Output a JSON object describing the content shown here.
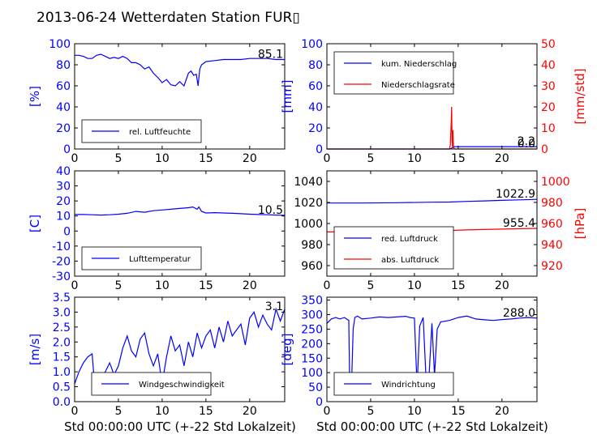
{
  "title": "2013-06-24 Wetterdaten Station FUR▯",
  "xlabel": "Std 00:00:00 UTC (+-22 Std Lokalzeit)",
  "colors": {
    "left_axis": "#0000ff",
    "right_axis": "#ff0000",
    "frame": "#000000"
  },
  "chart_data": [
    {
      "id": "humidity",
      "type": "line",
      "xlim": [
        0,
        24
      ],
      "xticks": [
        0,
        5,
        10,
        15,
        20
      ],
      "ylim": [
        0,
        100
      ],
      "yticks": [
        0,
        20,
        40,
        60,
        80,
        100
      ],
      "ylabel": "[%]",
      "annotation": "85.1",
      "legend": {
        "placement": "lower-left",
        "entries": [
          "rel. Luftfeuchte"
        ]
      },
      "series": [
        {
          "name": "rel. Luftfeuchte",
          "color": "#0000ff",
          "x": [
            0,
            0.5,
            1,
            1.5,
            2,
            2.5,
            3,
            3.5,
            4,
            4.5,
            5,
            5.5,
            6,
            6.5,
            7,
            7.5,
            8,
            8.5,
            9,
            9.5,
            10,
            10.5,
            11,
            11.5,
            12,
            12.5,
            13,
            13.3,
            13.6,
            13.9,
            14.1,
            14.3,
            14.5,
            15,
            16,
            17,
            18,
            19,
            20,
            21,
            22,
            23,
            24
          ],
          "y": [
            89,
            89,
            88,
            86,
            86,
            89,
            90,
            88,
            86,
            87,
            86,
            88,
            86,
            82,
            82,
            80,
            76,
            78,
            72,
            68,
            63,
            66,
            61,
            60,
            64,
            60,
            72,
            74,
            70,
            71,
            60,
            76,
            80,
            83,
            84,
            85,
            85,
            85,
            86,
            86,
            86,
            85,
            85
          ]
        }
      ]
    },
    {
      "id": "precipitation",
      "type": "line",
      "xlim": [
        0,
        24
      ],
      "xticks": [
        0,
        5,
        10,
        15,
        20
      ],
      "ylim": [
        0,
        100
      ],
      "yticks": [
        0,
        20,
        40,
        60,
        80,
        100
      ],
      "ylabel": "[mm]",
      "ylim_right": [
        0,
        50
      ],
      "yticks_right": [
        0,
        10,
        20,
        30,
        40,
        50
      ],
      "ylabel_right": "[mm/std]",
      "annotations": [
        "2.2",
        "0.0"
      ],
      "legend": {
        "placement": "upper-left",
        "entries": [
          "kum. Niederschlag",
          "Niederschlagsrate"
        ]
      },
      "series": [
        {
          "name": "kum. Niederschlag",
          "color": "#0000ff",
          "axis": "left",
          "x": [
            0,
            14.0,
            14.2,
            14.4,
            14.6,
            15,
            24
          ],
          "y": [
            0,
            0,
            0.5,
            1.6,
            2.2,
            2.2,
            2.2
          ]
        },
        {
          "name": "Niederschlagsrate",
          "color": "#ff0000",
          "axis": "right",
          "x": [
            0,
            14.0,
            14.1,
            14.2,
            14.25,
            14.3,
            14.35,
            14.4,
            14.45,
            14.5,
            14.6,
            15,
            24
          ],
          "y": [
            0,
            0,
            2,
            12,
            20,
            4,
            1,
            9,
            2,
            0.5,
            0,
            0,
            0
          ]
        }
      ]
    },
    {
      "id": "temperature",
      "type": "line",
      "xlim": [
        0,
        24
      ],
      "xticks": [
        0,
        5,
        10,
        15,
        20
      ],
      "ylim": [
        -30,
        40
      ],
      "yticks": [
        -30,
        -20,
        -10,
        0,
        10,
        20,
        30,
        40
      ],
      "ylabel": "[C]",
      "annotation": "10.5",
      "legend": {
        "placement": "lower-left",
        "entries": [
          "Lufttemperatur"
        ]
      },
      "series": [
        {
          "name": "Lufttemperatur",
          "color": "#0000ff",
          "x": [
            0,
            1,
            2,
            3,
            4,
            5,
            6,
            7,
            8,
            9,
            10,
            11,
            12,
            13,
            13.5,
            14,
            14.2,
            14.5,
            15,
            16,
            17,
            18,
            19,
            20,
            21,
            22,
            23,
            24
          ],
          "y": [
            11,
            11,
            10.8,
            10.6,
            10.8,
            11.2,
            11.8,
            13,
            12.5,
            13.5,
            14,
            14.5,
            15,
            15.5,
            16,
            14.5,
            16,
            13,
            12,
            12.2,
            12,
            11.8,
            11.5,
            11.2,
            11,
            10.8,
            10.6,
            10.5
          ]
        }
      ]
    },
    {
      "id": "pressure",
      "type": "line",
      "xlim": [
        0,
        24
      ],
      "xticks": [
        0,
        5,
        10,
        15,
        20
      ],
      "ylim": [
        950,
        1050
      ],
      "yticks": [
        960,
        980,
        1000,
        1020,
        1040
      ],
      "ylabel_right": "[hPa]",
      "ylim_right": [
        910,
        1010
      ],
      "yticks_right": [
        920,
        940,
        960,
        980,
        1000
      ],
      "annotations": [
        "1022.9",
        "955.4"
      ],
      "legend": {
        "placement": "lower-left",
        "entries": [
          "red. Luftdruck",
          "abs. Luftdruck"
        ]
      },
      "series": [
        {
          "name": "red. Luftdruck",
          "color": "#0000ff",
          "axis": "left",
          "x": [
            0,
            4,
            8,
            12,
            14,
            16,
            18,
            20,
            22,
            24
          ],
          "y": [
            1019.5,
            1019.5,
            1019.8,
            1020.2,
            1020.4,
            1021,
            1021.5,
            1022,
            1022.5,
            1022.9
          ]
        },
        {
          "name": "abs. Luftdruck",
          "color": "#ff0000",
          "axis": "right",
          "x": [
            0,
            4,
            8,
            12,
            14,
            16,
            18,
            20,
            22,
            24
          ],
          "y": [
            952,
            952.3,
            952.7,
            953.1,
            953.4,
            953.9,
            954.3,
            954.7,
            955.1,
            955.4
          ]
        }
      ]
    },
    {
      "id": "wind_speed",
      "type": "line",
      "xlim": [
        0,
        24
      ],
      "xticks": [
        0,
        5,
        10,
        15,
        20
      ],
      "ylim": [
        0,
        3.5
      ],
      "yticks": [
        0.0,
        0.5,
        1.0,
        1.5,
        2.0,
        2.5,
        3.0,
        3.5
      ],
      "ylabel": "[m/s]",
      "annotation": "3.1",
      "legend": {
        "placement": "lower-center",
        "entries": [
          "Windgeschwindigkeit"
        ]
      },
      "series": [
        {
          "name": "Windgeschwindigkeit",
          "color": "#0000ff",
          "x": [
            0,
            0.5,
            1,
            1.5,
            2,
            2.3,
            2.6,
            3,
            3.5,
            4,
            4.5,
            5,
            5.5,
            6,
            6.5,
            7,
            7.5,
            8,
            8.5,
            9,
            9.5,
            10,
            10.5,
            11,
            11.5,
            12,
            12.5,
            13,
            13.5,
            14,
            14.5,
            15,
            15.5,
            16,
            16.5,
            17,
            17.5,
            18,
            18.5,
            19,
            19.5,
            20,
            20.5,
            21,
            21.5,
            22,
            22.5,
            23,
            23.5,
            24
          ],
          "y": [
            0.6,
            1.0,
            1.3,
            1.5,
            1.6,
            0.5,
            0.3,
            0.8,
            1.0,
            1.3,
            0.9,
            1.2,
            1.8,
            2.2,
            1.7,
            1.5,
            2.1,
            2.3,
            1.6,
            1.2,
            1.6,
            0.6,
            1.5,
            2.2,
            1.7,
            1.9,
            1.2,
            2.0,
            1.5,
            2.3,
            1.8,
            2.2,
            2.4,
            1.8,
            2.5,
            2.0,
            2.7,
            2.2,
            2.4,
            2.6,
            1.9,
            2.8,
            3.0,
            2.5,
            2.9,
            2.6,
            2.4,
            3.1,
            2.7,
            3.1
          ]
        }
      ]
    },
    {
      "id": "wind_direction",
      "type": "line",
      "xlim": [
        0,
        24
      ],
      "xticks": [
        0,
        5,
        10,
        15,
        20
      ],
      "ylim": [
        0,
        360
      ],
      "yticks": [
        0,
        50,
        100,
        150,
        200,
        250,
        300,
        350
      ],
      "ylabel": "[deg]",
      "annotation": "288.0",
      "legend": {
        "placement": "lower-left",
        "entries": [
          "Windrichtung"
        ]
      },
      "series": [
        {
          "name": "Windrichtung",
          "color": "#0000ff",
          "x": [
            0,
            0.5,
            1,
            1.5,
            2,
            2.5,
            2.6,
            2.8,
            3.0,
            3.2,
            3.5,
            4,
            5,
            6,
            7,
            8,
            9,
            9.5,
            10,
            10.3,
            10.6,
            11,
            11.3,
            11.6,
            12,
            12.3,
            12.6,
            13,
            14,
            15,
            16,
            17,
            18,
            19,
            20,
            21,
            22,
            23,
            24
          ],
          "y": [
            270,
            285,
            290,
            285,
            290,
            280,
            60,
            40,
            250,
            290,
            295,
            285,
            288,
            292,
            290,
            292,
            294,
            290,
            288,
            50,
            260,
            290,
            100,
            50,
            270,
            90,
            250,
            275,
            280,
            290,
            295,
            285,
            282,
            280,
            283,
            285,
            288,
            290,
            288
          ]
        }
      ]
    }
  ]
}
